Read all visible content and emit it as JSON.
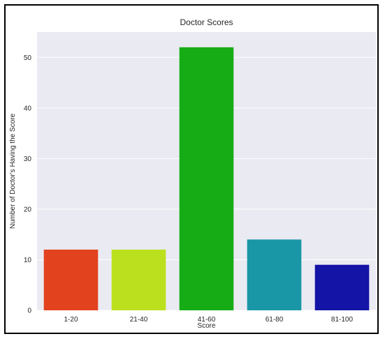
{
  "chart_data": {
    "type": "bar",
    "title": "Doctor Scores",
    "xlabel": "Score",
    "ylabel": "Number of Doctor's Having the Score",
    "categories": [
      "1-20",
      "21-40",
      "41-60",
      "61-80",
      "81-100"
    ],
    "values": [
      12,
      12,
      52,
      14,
      9
    ],
    "colors": [
      "#e2431e",
      "#bbe01e",
      "#16ac16",
      "#1a97a6",
      "#1414a6"
    ],
    "yticks": [
      0,
      10,
      20,
      30,
      40,
      50
    ],
    "ylim": [
      0,
      55
    ],
    "grid": "y-axis, white lines",
    "background": "#eaeaf2",
    "legend": "none"
  }
}
